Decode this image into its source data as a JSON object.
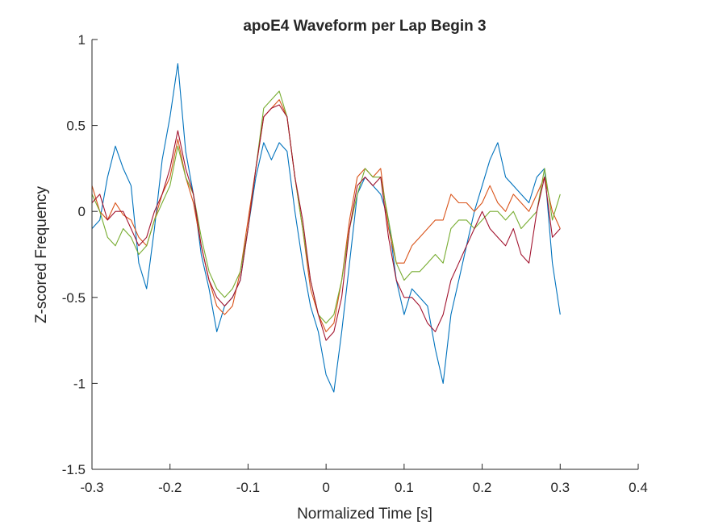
{
  "chart_data": {
    "type": "line",
    "title": "apoE4 Waveform per Lap Begin 3",
    "xlabel": "Normalized Time [s]",
    "ylabel": "Z-scored Frequency",
    "xlim": [
      -0.3,
      0.4
    ],
    "ylim": [
      -1.5,
      1
    ],
    "xticks": [
      -0.3,
      -0.2,
      -0.1,
      0,
      0.1,
      0.2,
      0.3,
      0.4
    ],
    "xtick_labels": [
      "-0.3",
      "-0.2",
      "-0.1",
      "0",
      "0.1",
      "0.2",
      "0.3",
      "0.4"
    ],
    "yticks": [
      -1.5,
      -1,
      -0.5,
      0,
      0.5,
      1
    ],
    "ytick_labels": [
      "-1.5",
      "-1",
      "-0.5",
      "0",
      "0.5",
      "1"
    ],
    "grid": false,
    "legend": "none",
    "x": [
      -0.3,
      -0.29,
      -0.28,
      -0.27,
      -0.26,
      -0.25,
      -0.24,
      -0.23,
      -0.22,
      -0.21,
      -0.2,
      -0.19,
      -0.18,
      -0.17,
      -0.16,
      -0.15,
      -0.14,
      -0.13,
      -0.12,
      -0.11,
      -0.1,
      -0.09,
      -0.08,
      -0.07,
      -0.06,
      -0.05,
      -0.04,
      -0.03,
      -0.02,
      -0.01,
      0.0,
      0.01,
      0.02,
      0.03,
      0.04,
      0.05,
      0.06,
      0.07,
      0.08,
      0.09,
      0.1,
      0.11,
      0.12,
      0.13,
      0.14,
      0.15,
      0.16,
      0.17,
      0.18,
      0.19,
      0.2,
      0.21,
      0.22,
      0.23,
      0.24,
      0.25,
      0.26,
      0.27,
      0.28,
      0.29,
      0.3
    ],
    "series": [
      {
        "color": "#0072BD",
        "values": [
          -0.1,
          -0.05,
          0.2,
          0.38,
          0.25,
          0.15,
          -0.3,
          -0.45,
          -0.1,
          0.3,
          0.55,
          0.86,
          0.35,
          0.1,
          -0.25,
          -0.45,
          -0.7,
          -0.55,
          -0.5,
          -0.4,
          -0.1,
          0.2,
          0.4,
          0.3,
          0.4,
          0.35,
          0.0,
          -0.3,
          -0.55,
          -0.7,
          -0.95,
          -1.05,
          -0.7,
          -0.3,
          0.1,
          0.2,
          0.15,
          0.1,
          -0.05,
          -0.4,
          -0.6,
          -0.45,
          -0.5,
          -0.55,
          -0.8,
          -1.0,
          -0.6,
          -0.4,
          -0.2,
          0.0,
          0.15,
          0.3,
          0.4,
          0.2,
          0.15,
          0.1,
          0.05,
          0.2,
          0.25,
          -0.3,
          -0.6
        ]
      },
      {
        "color": "#D95319",
        "values": [
          0.15,
          0.0,
          -0.05,
          0.05,
          -0.02,
          -0.05,
          -0.15,
          -0.2,
          -0.05,
          0.1,
          0.2,
          0.42,
          0.2,
          0.05,
          -0.2,
          -0.4,
          -0.55,
          -0.6,
          -0.55,
          -0.35,
          -0.05,
          0.25,
          0.55,
          0.6,
          0.65,
          0.55,
          0.2,
          -0.1,
          -0.45,
          -0.6,
          -0.7,
          -0.65,
          -0.4,
          -0.05,
          0.2,
          0.25,
          0.2,
          0.25,
          -0.1,
          -0.3,
          -0.3,
          -0.2,
          -0.15,
          -0.1,
          -0.05,
          -0.05,
          0.1,
          0.05,
          0.05,
          0.0,
          0.05,
          0.15,
          0.05,
          0.0,
          0.1,
          0.05,
          0.0,
          0.1,
          0.2,
          0.0,
          -0.1
        ]
      },
      {
        "color": "#77AC30",
        "values": [
          0.1,
          0.0,
          -0.15,
          -0.2,
          -0.1,
          -0.15,
          -0.25,
          -0.2,
          -0.05,
          0.05,
          0.15,
          0.38,
          0.2,
          0.1,
          -0.15,
          -0.35,
          -0.45,
          -0.5,
          -0.45,
          -0.35,
          -0.1,
          0.25,
          0.6,
          0.65,
          0.7,
          0.55,
          0.2,
          -0.1,
          -0.4,
          -0.6,
          -0.65,
          -0.6,
          -0.4,
          -0.1,
          0.1,
          0.25,
          0.2,
          0.2,
          -0.05,
          -0.3,
          -0.4,
          -0.35,
          -0.35,
          -0.3,
          -0.25,
          -0.3,
          -0.1,
          -0.05,
          -0.05,
          -0.1,
          -0.05,
          0.0,
          0.0,
          -0.05,
          0.0,
          -0.1,
          -0.05,
          0.0,
          0.25,
          -0.05,
          0.1
        ]
      },
      {
        "color": "#A2142F",
        "values": [
          0.05,
          0.1,
          -0.05,
          0.0,
          0.0,
          -0.1,
          -0.2,
          -0.15,
          0.0,
          0.1,
          0.25,
          0.47,
          0.25,
          0.1,
          -0.2,
          -0.4,
          -0.5,
          -0.55,
          -0.5,
          -0.4,
          -0.1,
          0.25,
          0.55,
          0.6,
          0.62,
          0.55,
          0.2,
          -0.05,
          -0.4,
          -0.6,
          -0.75,
          -0.7,
          -0.5,
          -0.1,
          0.15,
          0.2,
          0.15,
          0.2,
          -0.15,
          -0.4,
          -0.5,
          -0.5,
          -0.55,
          -0.65,
          -0.7,
          -0.6,
          -0.4,
          -0.3,
          -0.2,
          -0.1,
          0.0,
          -0.1,
          -0.15,
          -0.2,
          -0.1,
          -0.25,
          -0.3,
          0.0,
          0.2,
          -0.15,
          -0.1
        ]
      }
    ]
  }
}
